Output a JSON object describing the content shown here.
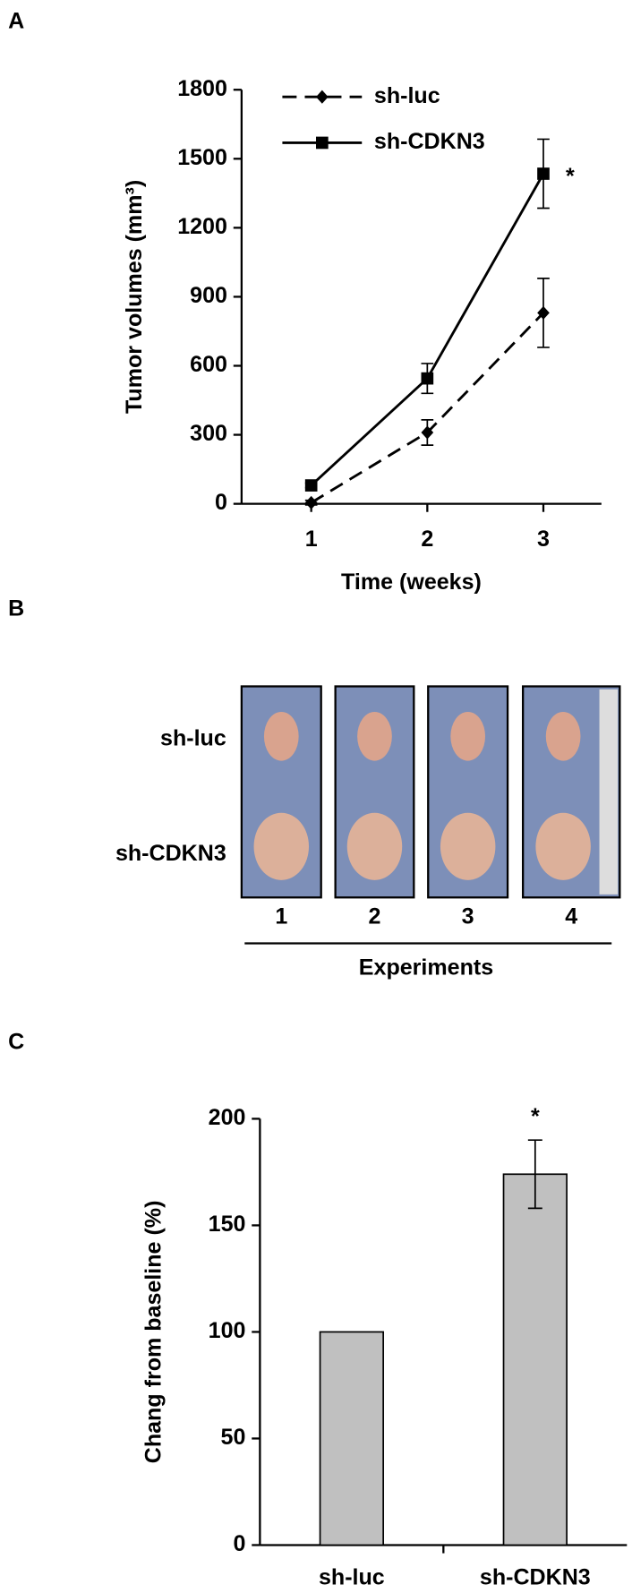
{
  "chart_data": [
    {
      "type": "line",
      "panel": "A",
      "x": [
        1,
        2,
        3
      ],
      "xlim": [
        0.4,
        3.5
      ],
      "xticks": [
        1,
        2,
        3
      ],
      "ylim": [
        0,
        1800
      ],
      "yticks": [
        0,
        300,
        600,
        900,
        1200,
        1500,
        1800
      ],
      "xlabel": "Time (weeks)",
      "ylabel": "Tumor volumes (mm³)",
      "legend": "upper left",
      "series": [
        {
          "name": "sh-luc",
          "color": "#000000",
          "marker": "diamond",
          "dashed": true,
          "values": [
            5,
            310,
            830
          ],
          "errors": [
            10,
            55,
            150
          ]
        },
        {
          "name": "sh-CDKN3",
          "color": "#000000",
          "marker": "square",
          "dashed": false,
          "values": [
            80,
            545,
            1435
          ],
          "errors": [
            10,
            65,
            150
          ]
        }
      ],
      "annotation": "*"
    },
    {
      "type": "image",
      "panel": "B",
      "rows": [
        "sh-luc",
        "sh-CDKN3"
      ],
      "columns": [
        "1",
        "2",
        "3",
        "4"
      ],
      "xlabel": "Experiments"
    },
    {
      "type": "bar",
      "panel": "C",
      "categories": [
        "sh-luc",
        "sh-CDKN3"
      ],
      "values": [
        100,
        174
      ],
      "errors": [
        null,
        16
      ],
      "color": "#c0c0c0",
      "ylim": [
        0,
        200
      ],
      "yticks": [
        0,
        50,
        100,
        150,
        200
      ],
      "ylabel": "Chang from baseline (%)",
      "annotation": "*"
    }
  ]
}
